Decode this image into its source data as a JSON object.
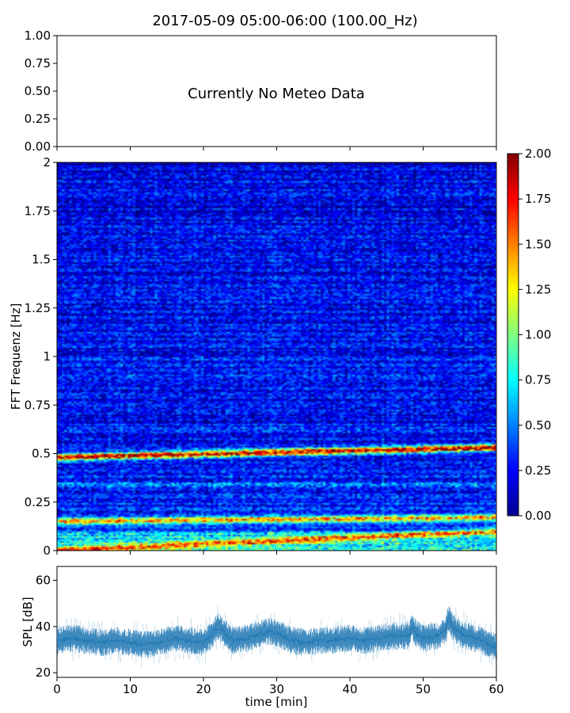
{
  "title": "2017-05-09 05:00-06:00 (100.00_Hz)",
  "chart_data": [
    {
      "type": "line",
      "panel": "meteo",
      "xlabel": "",
      "ylabel": "",
      "xlim": [
        0,
        60
      ],
      "ylim": [
        0,
        1
      ],
      "y_ticks": [
        "0.00",
        "0.25",
        "0.50",
        "0.75",
        "1.00"
      ],
      "annotation": "Currently No Meteo Data",
      "series": []
    },
    {
      "type": "heatmap",
      "panel": "spectrogram",
      "xlabel": "",
      "ylabel": "FFT Frequenz [Hz]",
      "xlim": [
        0,
        60
      ],
      "ylim": [
        0,
        2
      ],
      "y_ticks": [
        "0",
        "0.25",
        "0.5",
        "0.75",
        "1",
        "1.25",
        "1.5",
        "1.75",
        "2"
      ],
      "colormap": "jet",
      "clim": [
        0,
        2
      ],
      "colorbar_ticks": [
        "0.00",
        "0.25",
        "0.50",
        "0.75",
        "1.00",
        "1.25",
        "1.50",
        "1.75",
        "2.00"
      ],
      "features": [
        {
          "band": "microseism-peak",
          "freq_hz_start": 0.48,
          "freq_hz_end": 0.53,
          "intensity": 1.7
        },
        {
          "band": "secondary-peak",
          "freq_hz_start": 0.15,
          "freq_hz_end": 0.17,
          "intensity": 1.1
        },
        {
          "band": "low-frequency",
          "freq_hz_start": 0.0,
          "freq_hz_end": 0.1,
          "intensity": 0.9
        }
      ],
      "background_intensity": 0.3
    },
    {
      "type": "line",
      "panel": "spl",
      "xlabel": "time [min]",
      "ylabel": "SPL [dB]",
      "xlim": [
        0,
        60
      ],
      "ylim": [
        18,
        66
      ],
      "x_ticks": [
        "0",
        "10",
        "20",
        "30",
        "40",
        "50",
        "60"
      ],
      "y_ticks": [
        "20",
        "40",
        "60"
      ],
      "color": "#1f77b4",
      "series": [
        {
          "x": [
            0,
            2,
            4,
            6,
            8,
            10,
            12,
            14,
            16,
            18,
            20,
            21,
            22,
            23,
            24,
            26,
            28,
            29,
            30,
            32,
            34,
            36,
            38,
            40,
            42,
            44,
            46,
            48,
            48.5,
            49,
            50,
            52,
            53,
            53.5,
            54,
            55,
            56,
            58,
            60
          ],
          "y": [
            34,
            35,
            34,
            33,
            34,
            33,
            32,
            33,
            35,
            34,
            33,
            36,
            40,
            37,
            34,
            35,
            37,
            38,
            37,
            34,
            33,
            34,
            34,
            35,
            34,
            35,
            36,
            36,
            40,
            37,
            35,
            36,
            38,
            44,
            40,
            37,
            36,
            34,
            31
          ],
          "spread": 5
        }
      ]
    }
  ]
}
